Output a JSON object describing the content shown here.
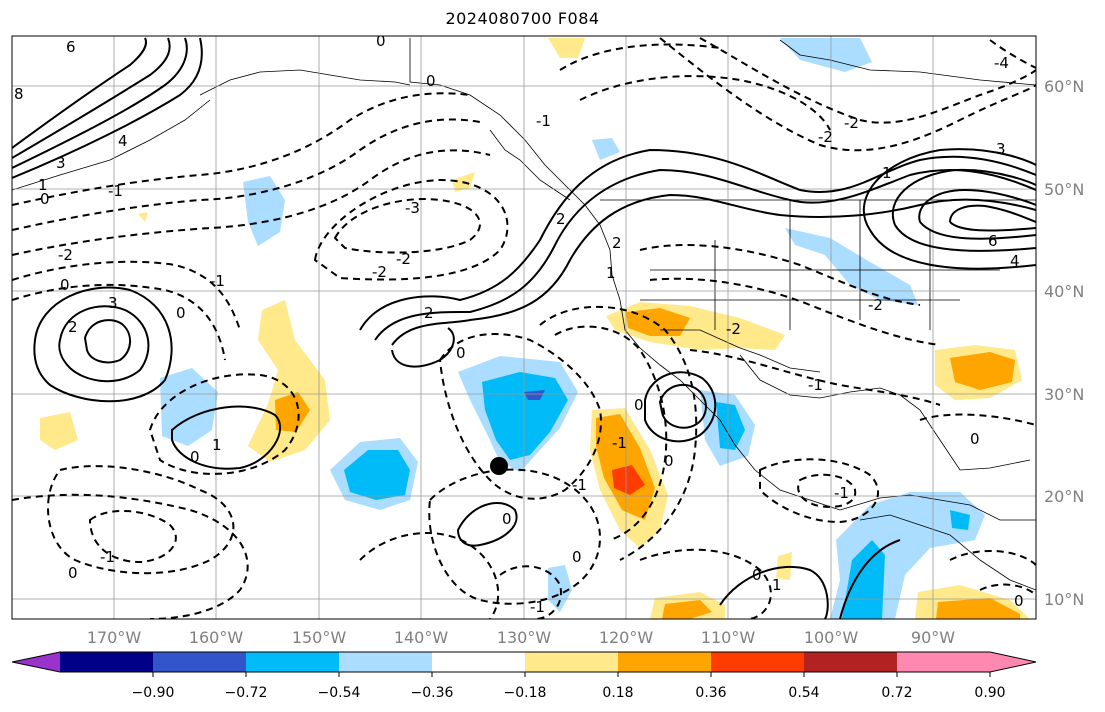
{
  "title": "2024080700 F084",
  "map": {
    "lon_labels": [
      "170°W",
      "160°W",
      "150°W",
      "140°W",
      "130°W",
      "120°W",
      "110°W",
      "100°W",
      "90°W"
    ],
    "lat_labels": [
      "60°N",
      "50°N",
      "40°N",
      "30°N",
      "20°N",
      "10°N"
    ],
    "contour_labels": [
      "8",
      "6",
      "4",
      "3",
      "1",
      "0",
      "-1",
      "-2",
      "-3",
      "2",
      "-4"
    ],
    "marker": "black-dot"
  },
  "colorbar": {
    "tick_labels": [
      "−0.90",
      "−0.72",
      "−0.54",
      "−0.36",
      "−0.18",
      "0.18",
      "0.36",
      "0.54",
      "0.72",
      "0.90"
    ],
    "colors": {
      "under": "#9933cc",
      "bins": [
        "#000088",
        "#3355cc",
        "#00bbf8",
        "#aaddff",
        "#ffffff",
        "#ffe98a",
        "#ffa500",
        "#ff3c00",
        "#b22222",
        "#ff88b0"
      ],
      "over": "#ff88b0"
    }
  }
}
